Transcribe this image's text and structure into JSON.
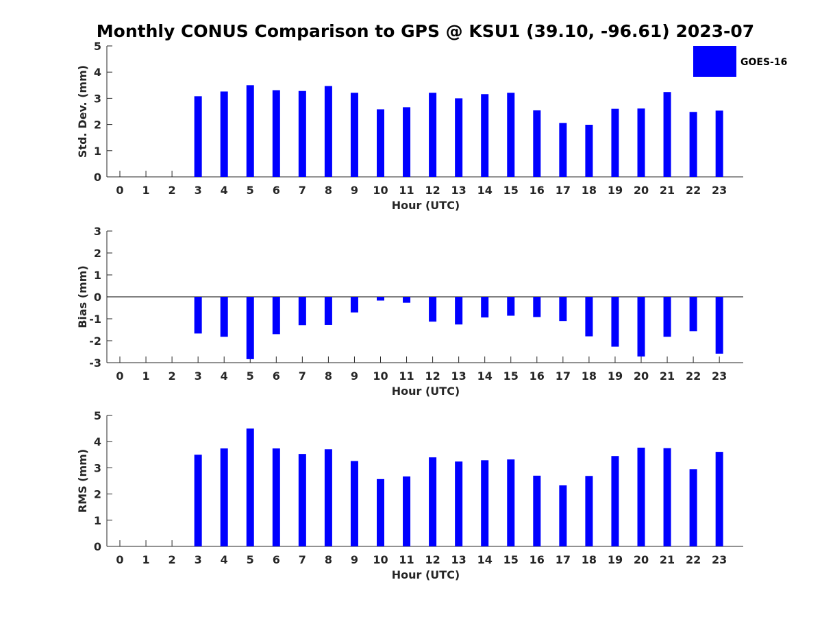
{
  "title": "Monthly CONUS Comparison to GPS @ KSU1 (39.10, -96.61) 2023-07",
  "colors": {
    "bar": "#0000ff",
    "axis": "#262626",
    "zero_line": "#000000"
  },
  "chart_data": [
    {
      "type": "bar",
      "xlabel": "Hour (UTC)",
      "ylabel": "Std. Dev. (mm)",
      "ylim": [
        0,
        5
      ],
      "yticks": [
        0,
        1,
        2,
        3,
        4,
        5
      ],
      "categories": [
        "0",
        "1",
        "2",
        "3",
        "4",
        "5",
        "6",
        "7",
        "8",
        "9",
        "10",
        "11",
        "12",
        "13",
        "14",
        "15",
        "16",
        "17",
        "18",
        "19",
        "20",
        "21",
        "22",
        "23"
      ],
      "series": [
        {
          "name": "GOES-16",
          "values": [
            null,
            null,
            null,
            3.08,
            3.26,
            3.5,
            3.31,
            3.28,
            3.47,
            3.21,
            2.58,
            2.66,
            3.21,
            3.0,
            3.16,
            3.21,
            2.54,
            2.06,
            1.99,
            2.6,
            2.61,
            3.24,
            2.48,
            2.53
          ]
        }
      ],
      "legend": "top-right"
    },
    {
      "type": "bar",
      "xlabel": "Hour (UTC)",
      "ylabel": "Bias (mm)",
      "ylim": [
        -3,
        3
      ],
      "yticks": [
        -3,
        -2,
        -1,
        0,
        1,
        2,
        3
      ],
      "categories": [
        "0",
        "1",
        "2",
        "3",
        "4",
        "5",
        "6",
        "7",
        "8",
        "9",
        "10",
        "11",
        "12",
        "13",
        "14",
        "15",
        "16",
        "17",
        "18",
        "19",
        "20",
        "21",
        "22",
        "23"
      ],
      "series": [
        {
          "name": "GOES-16",
          "values": [
            null,
            null,
            null,
            -1.67,
            -1.82,
            -2.84,
            -1.7,
            -1.29,
            -1.28,
            -0.71,
            -0.17,
            -0.27,
            -1.13,
            -1.26,
            -0.94,
            -0.86,
            -0.92,
            -1.1,
            -1.8,
            -2.27,
            -2.72,
            -1.82,
            -1.57,
            -2.59
          ]
        }
      ]
    },
    {
      "type": "bar",
      "xlabel": "Hour (UTC)",
      "ylabel": "RMS (mm)",
      "ylim": [
        0,
        5
      ],
      "yticks": [
        0,
        1,
        2,
        3,
        4,
        5
      ],
      "categories": [
        "0",
        "1",
        "2",
        "3",
        "4",
        "5",
        "6",
        "7",
        "8",
        "9",
        "10",
        "11",
        "12",
        "13",
        "14",
        "15",
        "16",
        "17",
        "18",
        "19",
        "20",
        "21",
        "22",
        "23"
      ],
      "series": [
        {
          "name": "GOES-16",
          "values": [
            null,
            null,
            null,
            3.5,
            3.74,
            4.5,
            3.74,
            3.53,
            3.71,
            3.26,
            2.57,
            2.67,
            3.4,
            3.24,
            3.29,
            3.32,
            2.7,
            2.33,
            2.69,
            3.45,
            3.77,
            3.75,
            2.95,
            3.61
          ]
        }
      ]
    }
  ]
}
